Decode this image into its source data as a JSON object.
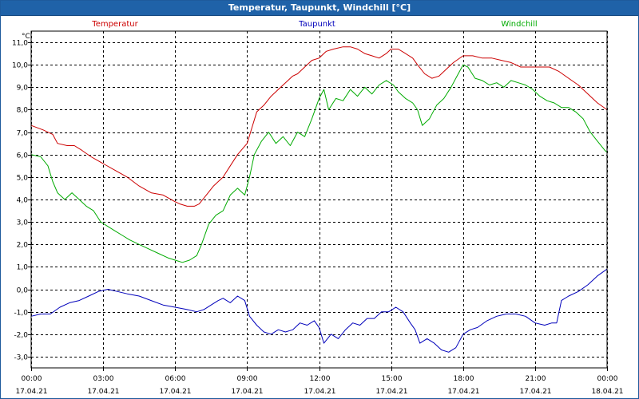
{
  "window": {
    "title": "Temperatur, Taupunkt, Windchill [°C]"
  },
  "chart_data": {
    "type": "line",
    "ylabel": "°C",
    "ylim": [
      -3.5,
      11.5
    ],
    "y_ticks": [
      "11,0",
      "10,0",
      "9,0",
      "8,0",
      "7,0",
      "6,0",
      "5,0",
      "4,0",
      "3,0",
      "2,0",
      "1,0",
      "0,0",
      "-1,0",
      "-2,0",
      "-3,0"
    ],
    "y_tick_values": [
      11,
      10,
      9,
      8,
      7,
      6,
      5,
      4,
      3,
      2,
      1,
      0,
      -1,
      -2,
      -3
    ],
    "x_range": [
      0,
      24
    ],
    "x_ticks": [
      {
        "time": "00:00",
        "date": "17.04.21",
        "hour": 0
      },
      {
        "time": "03:00",
        "date": "17.04.21",
        "hour": 3
      },
      {
        "time": "06:00",
        "date": "17.04.21",
        "hour": 6
      },
      {
        "time": "09:00",
        "date": "17.04.21",
        "hour": 9
      },
      {
        "time": "12:00",
        "date": "17.04.21",
        "hour": 12
      },
      {
        "time": "15:00",
        "date": "17.04.21",
        "hour": 15
      },
      {
        "time": "18:00",
        "date": "17.04.21",
        "hour": 18
      },
      {
        "time": "21:00",
        "date": "17.04.21",
        "hour": 21
      },
      {
        "time": "00:00",
        "date": "18.04.21",
        "hour": 24
      }
    ],
    "grid": true,
    "series": [
      {
        "name": "Temperatur",
        "color": "#cc0000",
        "points": [
          [
            0,
            7.3
          ],
          [
            0.5,
            7.1
          ],
          [
            0.9,
            6.9
          ],
          [
            1.1,
            6.5
          ],
          [
            1.5,
            6.4
          ],
          [
            1.8,
            6.4
          ],
          [
            2.1,
            6.2
          ],
          [
            2.5,
            5.9
          ],
          [
            3,
            5.6
          ],
          [
            3.5,
            5.3
          ],
          [
            4,
            5.0
          ],
          [
            4.5,
            4.6
          ],
          [
            5,
            4.3
          ],
          [
            5.5,
            4.2
          ],
          [
            6,
            3.9
          ],
          [
            6.2,
            3.8
          ],
          [
            6.5,
            3.7
          ],
          [
            6.8,
            3.7
          ],
          [
            7,
            3.8
          ],
          [
            7.3,
            4.2
          ],
          [
            7.6,
            4.6
          ],
          [
            8,
            5.0
          ],
          [
            8.3,
            5.5
          ],
          [
            8.6,
            6.0
          ],
          [
            9,
            6.5
          ],
          [
            9.2,
            7.2
          ],
          [
            9.4,
            7.9
          ],
          [
            9.7,
            8.2
          ],
          [
            10,
            8.6
          ],
          [
            10.3,
            8.9
          ],
          [
            10.6,
            9.2
          ],
          [
            10.9,
            9.5
          ],
          [
            11.1,
            9.6
          ],
          [
            11.4,
            9.9
          ],
          [
            11.7,
            10.2
          ],
          [
            12,
            10.3
          ],
          [
            12.3,
            10.6
          ],
          [
            12.6,
            10.7
          ],
          [
            13,
            10.8
          ],
          [
            13.3,
            10.8
          ],
          [
            13.6,
            10.7
          ],
          [
            13.9,
            10.5
          ],
          [
            14.2,
            10.4
          ],
          [
            14.5,
            10.3
          ],
          [
            14.8,
            10.5
          ],
          [
            15,
            10.7
          ],
          [
            15.3,
            10.7
          ],
          [
            15.6,
            10.5
          ],
          [
            15.9,
            10.3
          ],
          [
            16.1,
            10.0
          ],
          [
            16.4,
            9.6
          ],
          [
            16.7,
            9.4
          ],
          [
            17,
            9.5
          ],
          [
            17.3,
            9.8
          ],
          [
            17.6,
            10.1
          ],
          [
            18,
            10.4
          ],
          [
            18.4,
            10.4
          ],
          [
            18.8,
            10.3
          ],
          [
            19.2,
            10.3
          ],
          [
            19.6,
            10.2
          ],
          [
            20,
            10.1
          ],
          [
            20.4,
            9.9
          ],
          [
            20.8,
            9.9
          ],
          [
            21.2,
            9.9
          ],
          [
            21.6,
            9.9
          ],
          [
            22,
            9.7
          ],
          [
            22.4,
            9.4
          ],
          [
            22.8,
            9.1
          ],
          [
            23.2,
            8.7
          ],
          [
            23.6,
            8.3
          ],
          [
            24,
            8.0
          ]
        ]
      },
      {
        "name": "Taupunkt",
        "color": "#0000bb",
        "points": [
          [
            0,
            -1.2
          ],
          [
            0.4,
            -1.1
          ],
          [
            0.8,
            -1.1
          ],
          [
            1.2,
            -0.8
          ],
          [
            1.6,
            -0.6
          ],
          [
            2,
            -0.5
          ],
          [
            2.4,
            -0.3
          ],
          [
            2.8,
            -0.1
          ],
          [
            3.2,
            0.0
          ],
          [
            3.6,
            -0.1
          ],
          [
            4,
            -0.2
          ],
          [
            4.5,
            -0.3
          ],
          [
            5,
            -0.5
          ],
          [
            5.5,
            -0.7
          ],
          [
            6,
            -0.8
          ],
          [
            6.5,
            -0.9
          ],
          [
            6.9,
            -1.0
          ],
          [
            7.2,
            -0.9
          ],
          [
            7.5,
            -0.7
          ],
          [
            7.8,
            -0.5
          ],
          [
            8,
            -0.4
          ],
          [
            8.3,
            -0.6
          ],
          [
            8.6,
            -0.3
          ],
          [
            8.9,
            -0.5
          ],
          [
            9.1,
            -1.2
          ],
          [
            9.4,
            -1.6
          ],
          [
            9.7,
            -1.9
          ],
          [
            10,
            -2.0
          ],
          [
            10.3,
            -1.8
          ],
          [
            10.6,
            -1.9
          ],
          [
            10.9,
            -1.8
          ],
          [
            11.2,
            -1.5
          ],
          [
            11.5,
            -1.6
          ],
          [
            11.8,
            -1.4
          ],
          [
            12,
            -1.7
          ],
          [
            12.2,
            -2.4
          ],
          [
            12.5,
            -2.0
          ],
          [
            12.8,
            -2.2
          ],
          [
            13.1,
            -1.8
          ],
          [
            13.4,
            -1.5
          ],
          [
            13.7,
            -1.6
          ],
          [
            14,
            -1.3
          ],
          [
            14.3,
            -1.3
          ],
          [
            14.6,
            -1.0
          ],
          [
            14.9,
            -1.0
          ],
          [
            15.2,
            -0.8
          ],
          [
            15.5,
            -1.0
          ],
          [
            15.8,
            -1.5
          ],
          [
            16,
            -1.8
          ],
          [
            16.2,
            -2.4
          ],
          [
            16.5,
            -2.2
          ],
          [
            16.8,
            -2.4
          ],
          [
            17.1,
            -2.7
          ],
          [
            17.4,
            -2.8
          ],
          [
            17.7,
            -2.6
          ],
          [
            18,
            -2.0
          ],
          [
            18.3,
            -1.8
          ],
          [
            18.6,
            -1.7
          ],
          [
            19,
            -1.4
          ],
          [
            19.4,
            -1.2
          ],
          [
            19.8,
            -1.1
          ],
          [
            20.2,
            -1.1
          ],
          [
            20.6,
            -1.2
          ],
          [
            21,
            -1.5
          ],
          [
            21.4,
            -1.6
          ],
          [
            21.7,
            -1.5
          ],
          [
            21.9,
            -1.5
          ],
          [
            22.1,
            -0.5
          ],
          [
            22.4,
            -0.3
          ],
          [
            22.8,
            -0.1
          ],
          [
            23.2,
            0.2
          ],
          [
            23.6,
            0.6
          ],
          [
            24,
            0.9
          ]
        ]
      },
      {
        "name": "Windchill",
        "color": "#00aa00",
        "points": [
          [
            0,
            6.0
          ],
          [
            0.4,
            5.9
          ],
          [
            0.7,
            5.5
          ],
          [
            0.9,
            4.8
          ],
          [
            1.1,
            4.3
          ],
          [
            1.4,
            4.0
          ],
          [
            1.7,
            4.3
          ],
          [
            2,
            4.0
          ],
          [
            2.3,
            3.7
          ],
          [
            2.6,
            3.5
          ],
          [
            2.9,
            3.0
          ],
          [
            3.2,
            2.8
          ],
          [
            3.5,
            2.6
          ],
          [
            3.8,
            2.4
          ],
          [
            4.1,
            2.2
          ],
          [
            4.5,
            2.0
          ],
          [
            4.9,
            1.8
          ],
          [
            5.3,
            1.6
          ],
          [
            5.7,
            1.4
          ],
          [
            6,
            1.3
          ],
          [
            6.3,
            1.2
          ],
          [
            6.6,
            1.3
          ],
          [
            6.9,
            1.5
          ],
          [
            7.1,
            2.0
          ],
          [
            7.4,
            2.9
          ],
          [
            7.7,
            3.3
          ],
          [
            8,
            3.5
          ],
          [
            8.3,
            4.2
          ],
          [
            8.6,
            4.5
          ],
          [
            8.9,
            4.2
          ],
          [
            9.1,
            5.0
          ],
          [
            9.3,
            6.0
          ],
          [
            9.6,
            6.6
          ],
          [
            9.9,
            7.0
          ],
          [
            10.2,
            6.5
          ],
          [
            10.5,
            6.8
          ],
          [
            10.8,
            6.4
          ],
          [
            11.1,
            7.0
          ],
          [
            11.4,
            6.8
          ],
          [
            11.7,
            7.6
          ],
          [
            12,
            8.5
          ],
          [
            12.2,
            8.9
          ],
          [
            12.4,
            8.0
          ],
          [
            12.7,
            8.5
          ],
          [
            13,
            8.4
          ],
          [
            13.3,
            8.9
          ],
          [
            13.6,
            8.6
          ],
          [
            13.9,
            9.0
          ],
          [
            14.2,
            8.7
          ],
          [
            14.5,
            9.1
          ],
          [
            14.8,
            9.3
          ],
          [
            15.1,
            9.1
          ],
          [
            15.3,
            8.8
          ],
          [
            15.6,
            8.5
          ],
          [
            15.9,
            8.3
          ],
          [
            16.1,
            8.0
          ],
          [
            16.3,
            7.3
          ],
          [
            16.6,
            7.6
          ],
          [
            16.9,
            8.2
          ],
          [
            17.2,
            8.5
          ],
          [
            17.5,
            9.0
          ],
          [
            17.8,
            9.6
          ],
          [
            18,
            10.0
          ],
          [
            18.2,
            9.9
          ],
          [
            18.5,
            9.4
          ],
          [
            18.8,
            9.3
          ],
          [
            19.1,
            9.1
          ],
          [
            19.4,
            9.2
          ],
          [
            19.7,
            9.0
          ],
          [
            20,
            9.3
          ],
          [
            20.3,
            9.2
          ],
          [
            20.6,
            9.1
          ],
          [
            20.9,
            8.9
          ],
          [
            21.2,
            8.6
          ],
          [
            21.5,
            8.4
          ],
          [
            21.8,
            8.3
          ],
          [
            22.1,
            8.1
          ],
          [
            22.4,
            8.1
          ],
          [
            22.7,
            7.9
          ],
          [
            23,
            7.6
          ],
          [
            23.3,
            7.0
          ],
          [
            23.6,
            6.6
          ],
          [
            23.9,
            6.2
          ],
          [
            24,
            6.1
          ]
        ]
      }
    ]
  }
}
